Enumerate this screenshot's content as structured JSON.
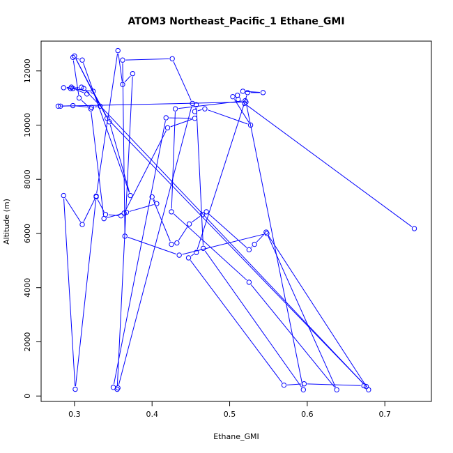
{
  "chart_data": {
    "type": "line",
    "title": "ATOM3 Northeast_Pacific_1 Ethane_GMI",
    "xlabel": "Ethane_GMI",
    "ylabel": "Altitude (m)",
    "xlim": [
      0.257,
      0.76
    ],
    "ylim": [
      -200,
      13100
    ],
    "x_ticks": [
      0.3,
      0.4,
      0.5,
      0.6,
      0.7
    ],
    "x_tick_labels": [
      "0.3",
      "0.4",
      "0.5",
      "0.6",
      "0.7"
    ],
    "y_ticks": [
      0,
      2000,
      4000,
      6000,
      8000,
      10000,
      12000
    ],
    "y_tick_labels": [
      "0",
      "2000",
      "4000",
      "6000",
      "8000",
      "10000",
      "12000"
    ],
    "grid": false,
    "color": "#0000ff",
    "series": [
      {
        "x": [
          0.738,
          0.519,
          0.523,
          0.543,
          0.517,
          0.51,
          0.511,
          0.504,
          0.527,
          0.468,
          0.455,
          0.457,
          0.466,
          0.595,
          0.521,
          0.279,
          0.282,
          0.298,
          0.322,
          0.333,
          0.3,
          0.342,
          0.676,
          0.312,
          0.316,
          0.298,
          0.309,
          0.295,
          0.296,
          0.286,
          0.324,
          0.345,
          0.372,
          0.31,
          0.298,
          0.306,
          0.321,
          0.338,
          0.364,
          0.42,
          0.455,
          0.418,
          0.35,
          0.355,
          0.375,
          0.362,
          0.356,
          0.328,
          0.31,
          0.286,
          0.301,
          0.328,
          0.34,
          0.36,
          0.367,
          0.406,
          0.4,
          0.425,
          0.432,
          0.448,
          0.465,
          0.47,
          0.525,
          0.532,
          0.547,
          0.679,
          0.673,
          0.596,
          0.57,
          0.447,
          0.457,
          0.52,
          0.43,
          0.425,
          0.525,
          0.638,
          0.548,
          0.435,
          0.365,
          0.362,
          0.426,
          0.452,
          0.356
        ],
        "y": [
          6180,
          10800,
          11200,
          11200,
          11250,
          11100,
          10950,
          11050,
          10000,
          10600,
          10500,
          10750,
          5450,
          230,
          10850,
          10700,
          10700,
          10720,
          10650,
          10700,
          12550,
          10250,
          350,
          11350,
          11150,
          11350,
          11400,
          11350,
          11400,
          11380,
          11250,
          10120,
          7400,
          12400,
          12500,
          11000,
          10600,
          6550,
          6750,
          9900,
          10250,
          10270,
          320,
          250,
          11900,
          11500,
          12750,
          7380,
          6330,
          7400,
          250,
          7350,
          6700,
          6650,
          6780,
          7100,
          7350,
          5600,
          5650,
          6350,
          6700,
          6800,
          5400,
          5600,
          6050,
          230,
          380,
          450,
          400,
          5100,
          5300,
          10900,
          10600,
          6800,
          4200,
          230,
          6000,
          5200,
          5900,
          12400,
          12450,
          10800,
          300
        ]
      }
    ]
  }
}
